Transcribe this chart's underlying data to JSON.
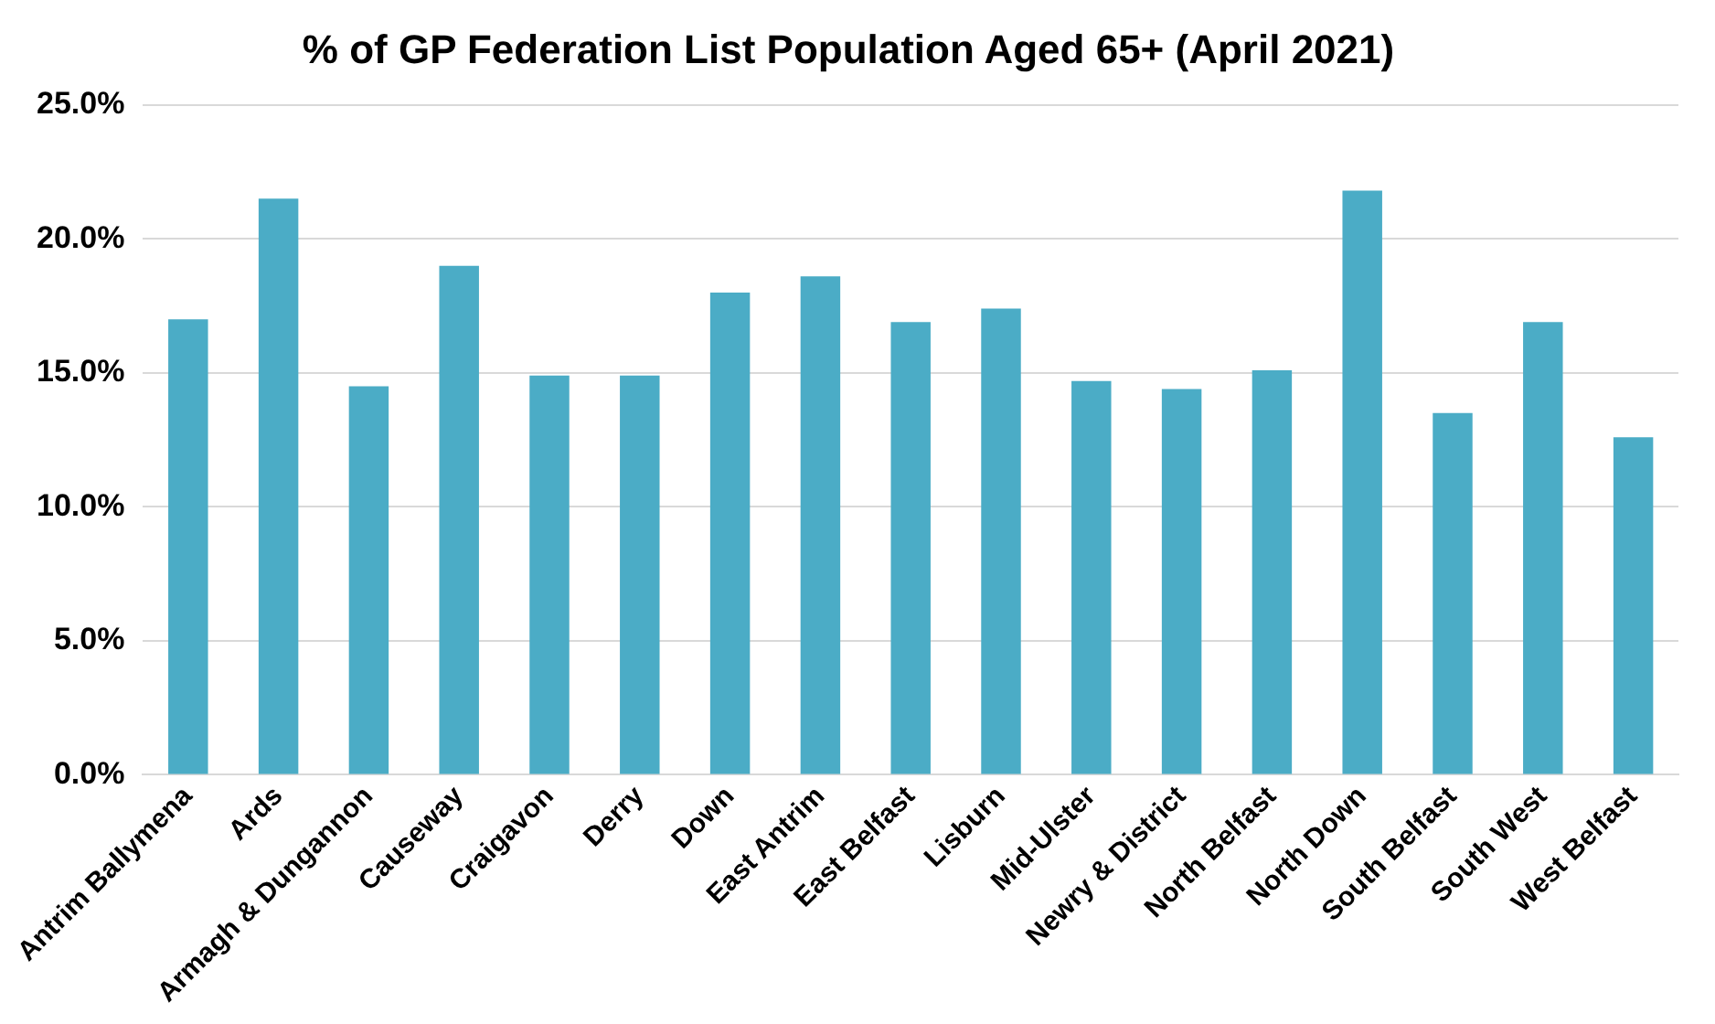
{
  "chart_data": {
    "type": "bar",
    "title": "% of GP Federation List Population Aged 65+ (April 2021)",
    "categories": [
      "Antrim Ballymena",
      "Ards",
      "Armagh & Dungannon",
      "Causeway",
      "Craigavon",
      "Derry",
      "Down",
      "East Antrim",
      "East Belfast",
      "Lisburn",
      "Mid-Ulster",
      "Newry & District",
      "North Belfast",
      "North Down",
      "South Belfast",
      "South West",
      "West Belfast"
    ],
    "values": [
      17.0,
      21.5,
      14.5,
      19.0,
      14.9,
      14.9,
      18.0,
      18.6,
      16.9,
      17.4,
      14.7,
      14.4,
      15.1,
      21.8,
      13.5,
      16.9,
      12.6
    ],
    "color": "#4bacc6",
    "ylim": [
      0,
      25
    ],
    "yticks": [
      {
        "value": 0,
        "label": "0.0%"
      },
      {
        "value": 5,
        "label": "5.0%"
      },
      {
        "value": 10,
        "label": "10.0%"
      },
      {
        "value": 15,
        "label": "15.0%"
      },
      {
        "value": 20,
        "label": "20.0%"
      },
      {
        "value": 25,
        "label": "25.0%"
      }
    ],
    "grid": "y",
    "legend": false
  }
}
